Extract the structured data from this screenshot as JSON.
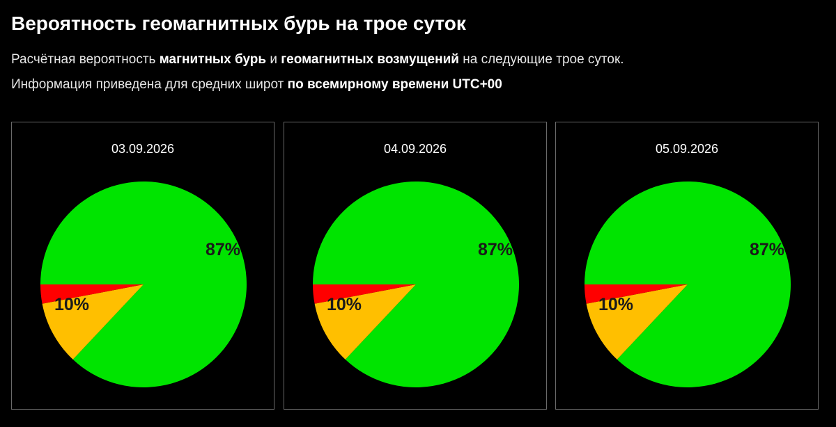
{
  "header": {
    "title": "Вероятность геомагнитных бурь на трое суток",
    "line1_a": "Расчётная вероятность ",
    "line1_b": "магнитных бурь",
    "line1_c": " и ",
    "line1_d": "геомагнитных возмущений",
    "line1_e": " на следующие трое суток.",
    "line2_a": "Информация приведена для средних широт ",
    "line2_b": "по всемирному времени UTC+00"
  },
  "colors": {
    "quiet": "#00e400",
    "disturbance": "#ffbf00",
    "storm": "#ff0000",
    "background": "#000000",
    "panel_border": "#6a6a6a"
  },
  "chart_data": [
    {
      "type": "pie",
      "title": "03.09.2026",
      "slices": [
        {
          "value": 87,
          "label": "87%",
          "color": "#00e400"
        },
        {
          "value": 10,
          "label": "10%",
          "color": "#ffbf00"
        },
        {
          "value": 3,
          "label": "",
          "color": "#ff0000"
        }
      ]
    },
    {
      "type": "pie",
      "title": "04.09.2026",
      "slices": [
        {
          "value": 87,
          "label": "87%",
          "color": "#00e400"
        },
        {
          "value": 10,
          "label": "10%",
          "color": "#ffbf00"
        },
        {
          "value": 3,
          "label": "",
          "color": "#ff0000"
        }
      ]
    },
    {
      "type": "pie",
      "title": "05.09.2026",
      "slices": [
        {
          "value": 87,
          "label": "87%",
          "color": "#00e400"
        },
        {
          "value": 10,
          "label": "10%",
          "color": "#ffbf00"
        },
        {
          "value": 3,
          "label": "",
          "color": "#ff0000"
        }
      ]
    }
  ]
}
